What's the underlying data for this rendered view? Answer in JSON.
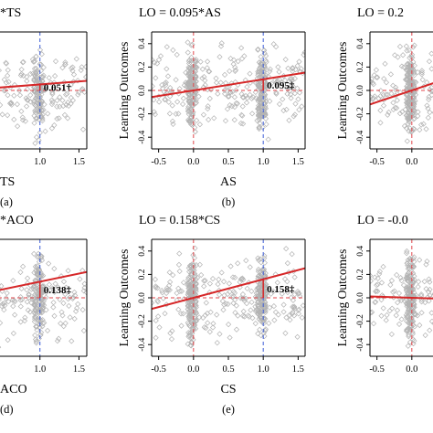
{
  "colors": {
    "points": "#b3b3b3",
    "fit_line": "#d62728",
    "zero_ref": "#e0464b",
    "one_ref": "#3b5bd6",
    "axis": "#000000"
  },
  "chart_data": [
    {
      "id": "a",
      "type": "scatter",
      "title": "*TS",
      "panel_label": "(a)",
      "xlabel": "TS",
      "ylabel": "",
      "xticks": [
        "1.0",
        "1.5"
      ],
      "xlim": [
        -0.6,
        1.6
      ],
      "ylim": [
        -0.5,
        0.5
      ],
      "slope": 0.051,
      "slope_label": "0.051†",
      "ref_lines": {
        "x0": false,
        "x1": true,
        "y0": true
      },
      "y_axis_visible": false
    },
    {
      "id": "b",
      "type": "scatter",
      "title": "LO = 0.095*AS",
      "panel_label": "(b)",
      "xlabel": "AS",
      "ylabel": "Learning Outcomes",
      "xticks": [
        "-0.5",
        "0.0",
        "0.5",
        "1.0",
        "1.5"
      ],
      "yticks": [
        "-0.4",
        "-0.2",
        "0.0",
        "0.2",
        "0.4"
      ],
      "xlim": [
        -0.6,
        1.6
      ],
      "ylim": [
        -0.5,
        0.5
      ],
      "slope": 0.095,
      "slope_label": "0.095‡",
      "ref_lines": {
        "x0": true,
        "x1": true,
        "y0": true
      },
      "y_axis_visible": true
    },
    {
      "id": "c",
      "type": "scatter",
      "title": "LO = 0.2",
      "panel_label": "",
      "xlabel": "",
      "ylabel": "Learning Outcomes",
      "xticks": [
        "-0.5",
        "0.0"
      ],
      "yticks": [
        "-0.4",
        "-0.2",
        "0.0",
        "0.2",
        "0.4"
      ],
      "xlim": [
        -0.6,
        1.6
      ],
      "ylim": [
        -0.5,
        0.5
      ],
      "slope": 0.2,
      "slope_label": "",
      "ref_lines": {
        "x0": true,
        "x1": false,
        "y0": true
      },
      "y_axis_visible": true
    },
    {
      "id": "d",
      "type": "scatter",
      "title": "*ACO",
      "panel_label": "(d)",
      "xlabel": "ACO",
      "ylabel": "",
      "xticks": [
        "1.0",
        "1.5"
      ],
      "xlim": [
        -0.6,
        1.6
      ],
      "ylim": [
        -0.5,
        0.5
      ],
      "slope": 0.138,
      "slope_label": "0.138‡",
      "ref_lines": {
        "x0": false,
        "x1": true,
        "y0": true
      },
      "y_axis_visible": false
    },
    {
      "id": "e",
      "type": "scatter",
      "title": "LO = 0.158*CS",
      "panel_label": "(e)",
      "xlabel": "CS",
      "ylabel": "Learning Outcomes",
      "xticks": [
        "-0.5",
        "0.0",
        "0.5",
        "1.0",
        "1.5"
      ],
      "yticks": [
        "-0.4",
        "-0.2",
        "0.0",
        "0.2",
        "0.4"
      ],
      "xlim": [
        -0.6,
        1.6
      ],
      "ylim": [
        -0.5,
        0.5
      ],
      "slope": 0.158,
      "slope_label": "0.158‡",
      "ref_lines": {
        "x0": true,
        "x1": true,
        "y0": true
      },
      "y_axis_visible": true
    },
    {
      "id": "f",
      "type": "scatter",
      "title": "LO = -0.0",
      "panel_label": "",
      "xlabel": "",
      "ylabel": "Learning Outcomes",
      "xticks": [
        "-0.5",
        "0.0"
      ],
      "yticks": [
        "-0.4",
        "-0.2",
        "0.0",
        "0.2",
        "0.4"
      ],
      "xlim": [
        -0.6,
        1.6
      ],
      "ylim": [
        -0.5,
        0.5
      ],
      "slope": -0.02,
      "slope_label": "",
      "ref_lines": {
        "x0": true,
        "x1": false,
        "y0": true
      },
      "y_axis_visible": true
    }
  ]
}
